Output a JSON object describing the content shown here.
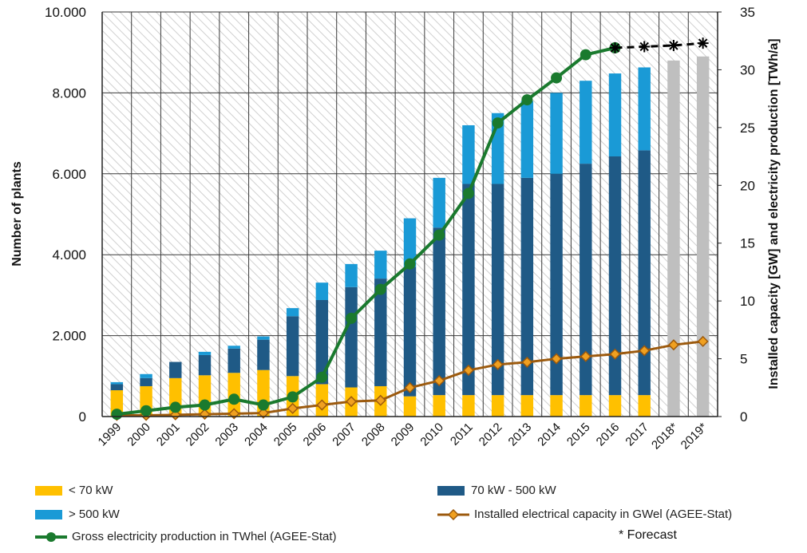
{
  "chart_data": {
    "type": "bar",
    "categories": [
      "1999",
      "2000",
      "2001",
      "2002",
      "2003",
      "2004",
      "2005",
      "2006",
      "2007",
      "2008",
      "2009",
      "2010",
      "2011",
      "2012",
      "2013",
      "2014",
      "2015",
      "2016",
      "2017",
      "2018*",
      "2019*"
    ],
    "bar_series": [
      {
        "name": "< 70 kW",
        "color": "#ffc000",
        "values": [
          650,
          750,
          950,
          1020,
          1080,
          1150,
          1000,
          800,
          720,
          750,
          500,
          530,
          530,
          530,
          530,
          530,
          530,
          530,
          530,
          null,
          null
        ]
      },
      {
        "name": "70 kW  - 500 kW",
        "color": "#1f5a86",
        "values": [
          150,
          200,
          400,
          500,
          600,
          750,
          1480,
          2080,
          2480,
          2660,
          3200,
          4140,
          5220,
          5220,
          5370,
          5470,
          5720,
          5900,
          6050,
          null,
          null
        ]
      },
      {
        "name": "> 500 kW",
        "color": "#1a9ad6",
        "values": [
          50,
          100,
          0,
          80,
          70,
          80,
          200,
          430,
          570,
          690,
          1200,
          1230,
          1450,
          1750,
          1900,
          2000,
          2050,
          2050,
          2050,
          null,
          null
        ]
      },
      {
        "name": "Forecast total",
        "color": "#bfbfbf",
        "values": [
          null,
          null,
          null,
          null,
          null,
          null,
          null,
          null,
          null,
          null,
          null,
          null,
          null,
          null,
          null,
          null,
          null,
          null,
          null,
          8800,
          8900
        ]
      }
    ],
    "line_series": [
      {
        "name": "Installed electrical capacity in GWel (AGEE-Stat)",
        "color": "#9c5a0e",
        "marker": "diamond",
        "values": [
          0.1,
          0.1,
          0.15,
          0.2,
          0.25,
          0.3,
          0.7,
          1.0,
          1.3,
          1.4,
          2.5,
          3.1,
          4.0,
          4.5,
          4.7,
          5.0,
          5.2,
          5.4,
          5.7,
          6.2,
          6.5
        ]
      },
      {
        "name": "Gross electricity production in TWhel (AGEE-Stat)",
        "color": "#1a7a2e",
        "marker": "circle",
        "values": [
          0.2,
          0.5,
          0.8,
          1.0,
          1.5,
          1.0,
          1.7,
          3.4,
          8.5,
          11.0,
          13.2,
          15.7,
          19.3,
          25.4,
          27.4,
          29.3,
          31.3,
          31.9,
          null,
          null,
          null
        ]
      },
      {
        "name": "Gross electricity production forecast",
        "color": "#000000",
        "marker": "asterisk",
        "dashed": true,
        "values": [
          null,
          null,
          null,
          null,
          null,
          null,
          null,
          null,
          null,
          null,
          null,
          null,
          null,
          null,
          null,
          null,
          null,
          31.9,
          32.0,
          32.1,
          32.3
        ]
      }
    ],
    "y_left": {
      "label": "Number of plants",
      "min": 0,
      "max": 10000,
      "ticks": [
        "0",
        "2.000",
        "4.000",
        "6.000",
        "8.000",
        "10.000"
      ]
    },
    "y_right": {
      "label": "Installed capacity [GW] and electricity production [TWh/a]",
      "min": 0,
      "max": 35,
      "ticks": [
        "0",
        "5",
        "10",
        "15",
        "20",
        "25",
        "30",
        "35"
      ]
    },
    "grid": true,
    "legend_position": "bottom"
  },
  "legend": {
    "items": [
      {
        "label": "< 70 kW"
      },
      {
        "label": "70 kW  - 500 kW"
      },
      {
        "label": "> 500 kW"
      },
      {
        "label": "Installed electrical capacity in GWel (AGEE-Stat)"
      },
      {
        "label": "Gross electricity production in TWhel (AGEE-Stat)"
      }
    ],
    "note": "* Forecast"
  }
}
